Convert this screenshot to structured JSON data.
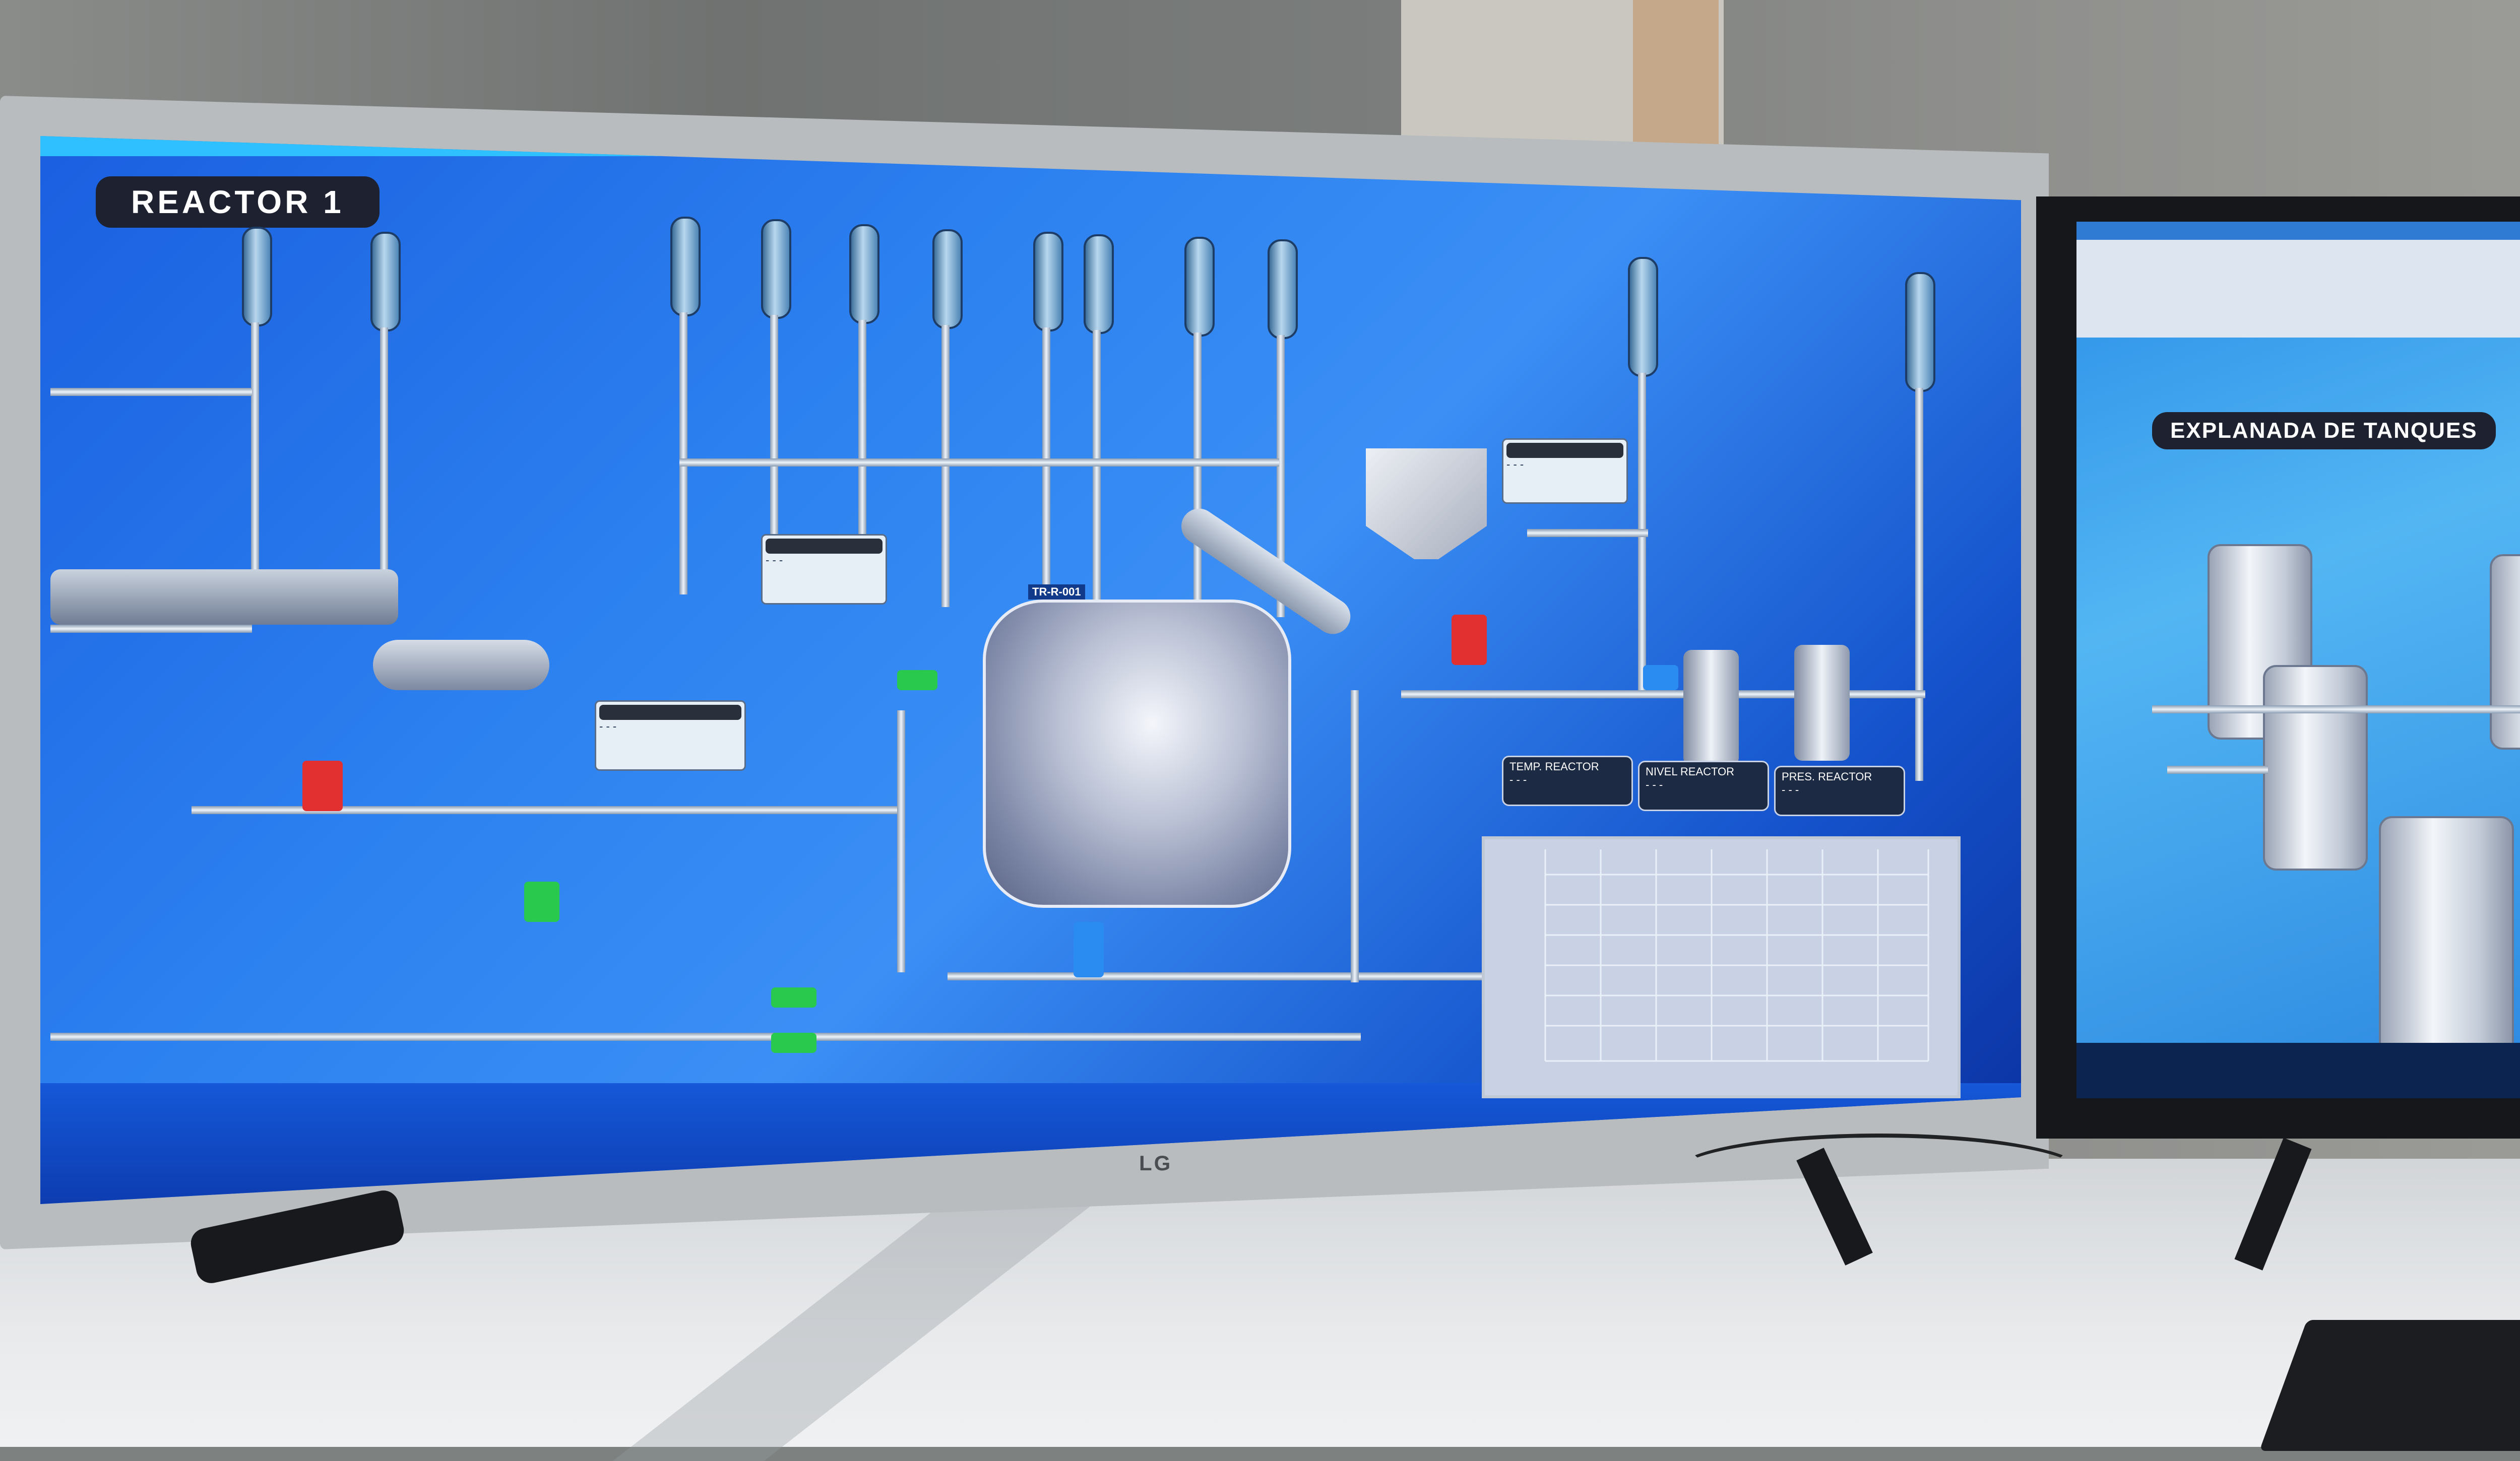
{
  "monitor_main": {
    "title": "REACTOR 1",
    "brand": "LG",
    "reactor_tag": "TR-R-001",
    "panels": [
      {
        "name": "panel-upper-center",
        "value": "- - -"
      },
      {
        "name": "panel-left-mid",
        "value": "- - -"
      },
      {
        "name": "panel-hopper",
        "value": "- - -"
      }
    ],
    "status_boxes": [
      {
        "label": "TEMP. REACTOR",
        "value": "- - -"
      },
      {
        "label": "NIVEL REACTOR",
        "value": "- - -"
      },
      {
        "label": "PRES. REACTOR",
        "value": "- - -"
      }
    ]
  },
  "monitor_secondary": {
    "title": "EXPLANADA DE TANQUES"
  },
  "colors": {
    "hmi_background": "#2d82f0",
    "alarm_red": "#e23030",
    "ok_green": "#28c94c",
    "title_badge": "#1e2230"
  },
  "icons": [
    "tube-indicator-icon",
    "valve-icon",
    "pump-icon",
    "reactor-vessel-icon",
    "hopper-icon",
    "condenser-icon",
    "tank-icon"
  ]
}
